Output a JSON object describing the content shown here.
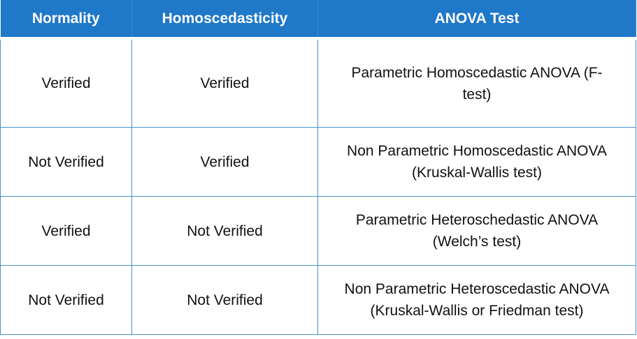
{
  "table": {
    "headers": [
      "Normality",
      "Homoscedasticity",
      "ANOVA Test"
    ],
    "rows": [
      {
        "normality": "Verified",
        "homoscedasticity": "Verified",
        "anova_line1": "Parametric Homoscedastic ANOVA (F-",
        "anova_line2": "test)"
      },
      {
        "normality": "Not Verified",
        "homoscedasticity": "Verified",
        "anova_line1": "Non Parametric Homoscedastic  ANOVA",
        "anova_line2": "(Kruskal-Wallis test)"
      },
      {
        "normality": "Verified",
        "homoscedasticity": "Not Verified",
        "anova_line1": "Parametric Heteroschedastic ANOVA",
        "anova_line2": "(Welch’s test)"
      },
      {
        "normality": "Not Verified",
        "homoscedasticity": "Not Verified",
        "anova_line1": "Non Parametric Heteroscedastic ANOVA",
        "anova_line2": "(Kruskal-Wallis or Friedman  test)"
      }
    ]
  },
  "colors": {
    "header_bg": "#1f78c8",
    "header_text": "#ffffff",
    "border": "#4a8fd0"
  }
}
